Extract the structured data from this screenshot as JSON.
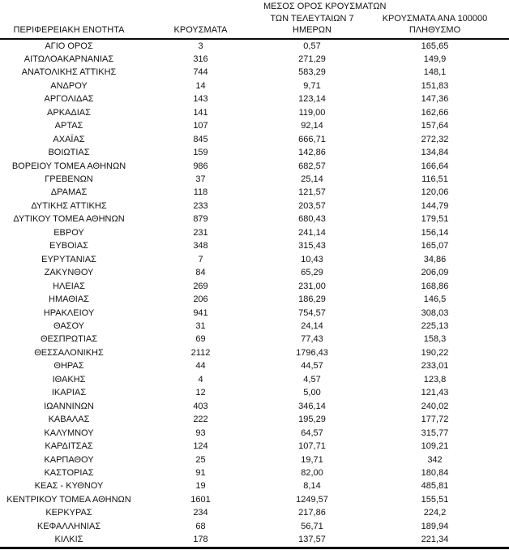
{
  "colors": {
    "background": "#ffffff",
    "text": "#131313",
    "rule": "#0a0a0a"
  },
  "table": {
    "header": {
      "col1": "ΠΕΡΙΦΕΡΕΙΑΚΗ ΕΝΟΤΗΤΑ",
      "col2": "ΚΡΟΥΣΜΑΤΑ",
      "col3_lines": [
        "ΜΕΣΟΣ ΟΡΟΣ ΚΡΟΥΣΜΑΤΩΝ",
        "ΤΩΝ ΤΕΛΕΥΤΑΙΩΝ 7",
        "ΗΜΕΡΩΝ"
      ],
      "col4_lines": [
        "ΚΡΟΥΣΜΑΤΑ ΑΝΑ 100000",
        "ΠΛΗΘΥΣΜΟ"
      ]
    }
  },
  "chart_data": {
    "type": "table",
    "columns": [
      "ΠΕΡΙΦΕΡΕΙΑΚΗ ΕΝΟΤΗΤΑ",
      "ΚΡΟΥΣΜΑΤΑ",
      "ΜΕΣΟΣ ΟΡΟΣ ΚΡΟΥΣΜΑΤΩΝ ΤΩΝ ΤΕΛΕΥΤΑΙΩΝ 7 ΗΜΕΡΩΝ",
      "ΚΡΟΥΣΜΑΤΑ ΑΝΑ 100000 ΠΛΗΘΥΣΜΟ"
    ],
    "rows": [
      [
        "ΑΓΙΟ ΟΡΟΣ",
        "3",
        "0,57",
        "165,65"
      ],
      [
        "ΑΙΤΩΛΟΑΚΑΡΝΑΝΙΑΣ",
        "316",
        "271,29",
        "149,9"
      ],
      [
        "ΑΝΑΤΟΛΙΚΗΣ ΑΤΤΙΚΗΣ",
        "744",
        "583,29",
        "148,1"
      ],
      [
        "ΑΝΔΡΟΥ",
        "14",
        "9,71",
        "151,83"
      ],
      [
        "ΑΡΓΟΛΙΔΑΣ",
        "143",
        "123,14",
        "147,36"
      ],
      [
        "ΑΡΚΑΔΙΑΣ",
        "141",
        "119,00",
        "162,66"
      ],
      [
        "ΑΡΤΑΣ",
        "107",
        "92,14",
        "157,64"
      ],
      [
        "ΑΧΑΪΑΣ",
        "845",
        "666,71",
        "272,32"
      ],
      [
        "ΒΟΙΩΤΙΑΣ",
        "159",
        "142,86",
        "134,84"
      ],
      [
        "ΒΟΡΕΙΟΥ ΤΟΜΕΑ ΑΘΗΝΩΝ",
        "986",
        "682,57",
        "166,64"
      ],
      [
        "ΓΡΕΒΕΝΩΝ",
        "37",
        "25,14",
        "116,51"
      ],
      [
        "ΔΡΑΜΑΣ",
        "118",
        "121,57",
        "120,06"
      ],
      [
        "ΔΥΤΙΚΗΣ ΑΤΤΙΚΗΣ",
        "233",
        "203,57",
        "144,79"
      ],
      [
        "ΔΥΤΙΚΟΥ ΤΟΜΕΑ ΑΘΗΝΩΝ",
        "879",
        "680,43",
        "179,51"
      ],
      [
        "ΕΒΡΟΥ",
        "231",
        "241,14",
        "156,14"
      ],
      [
        "ΕΥΒΟΙΑΣ",
        "348",
        "315,43",
        "165,07"
      ],
      [
        "ΕΥΡΥΤΑΝΙΑΣ",
        "7",
        "10,43",
        "34,86"
      ],
      [
        "ΖΑΚΥΝΘΟΥ",
        "84",
        "65,29",
        "206,09"
      ],
      [
        "ΗΛΕΙΑΣ",
        "269",
        "231,00",
        "168,86"
      ],
      [
        "ΗΜΑΘΙΑΣ",
        "206",
        "186,29",
        "146,5"
      ],
      [
        "ΗΡΑΚΛΕΙΟΥ",
        "941",
        "754,57",
        "308,03"
      ],
      [
        "ΘΑΣΟΥ",
        "31",
        "24,14",
        "225,13"
      ],
      [
        "ΘΕΣΠΡΩΤΙΑΣ",
        "69",
        "77,43",
        "158,3"
      ],
      [
        "ΘΕΣΣΑΛΟΝΙΚΗΣ",
        "2112",
        "1796,43",
        "190,22"
      ],
      [
        "ΘΗΡΑΣ",
        "44",
        "44,57",
        "233,01"
      ],
      [
        "ΙΘΑΚΗΣ",
        "4",
        "4,57",
        "123,8"
      ],
      [
        "ΙΚΑΡΙΑΣ",
        "12",
        "5,00",
        "121,43"
      ],
      [
        "ΙΩΑΝΝΙΝΩΝ",
        "403",
        "346,14",
        "240,02"
      ],
      [
        "ΚΑΒΑΛΑΣ",
        "222",
        "195,29",
        "177,72"
      ],
      [
        "ΚΑΛΥΜΝΟΥ",
        "93",
        "64,57",
        "315,77"
      ],
      [
        "ΚΑΡΔΙΤΣΑΣ",
        "124",
        "107,71",
        "109,21"
      ],
      [
        "ΚΑΡΠΑΘΟΥ",
        "25",
        "19,71",
        "342"
      ],
      [
        "ΚΑΣΤΟΡΙΑΣ",
        "91",
        "82,00",
        "180,84"
      ],
      [
        "ΚΕΑΣ - ΚΥΘΝΟΥ",
        "19",
        "8,14",
        "485,81"
      ],
      [
        "ΚΕΝΤΡΙΚΟΥ ΤΟΜΕΑ ΑΘΗΝΩΝ",
        "1601",
        "1249,57",
        "155,51"
      ],
      [
        "ΚΕΡΚΥΡΑΣ",
        "234",
        "217,86",
        "224,2"
      ],
      [
        "ΚΕΦΑΛΛΗΝΙΑΣ",
        "68",
        "56,71",
        "189,94"
      ],
      [
        "ΚΙΛΚΙΣ",
        "178",
        "137,57",
        "221,34"
      ]
    ]
  }
}
